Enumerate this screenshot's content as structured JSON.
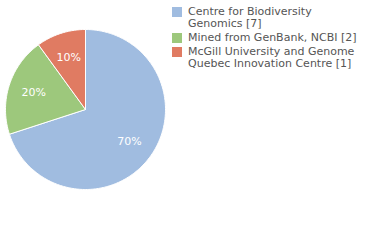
{
  "chart_data": {
    "type": "pie",
    "categories": [
      "Centre for Biodiversity Genomics [7]",
      "Mined from GenBank, NCBI [2]",
      "McGill University and Genome Quebec Innovation Centre [1]"
    ],
    "values": [
      70,
      20,
      10
    ],
    "value_labels": [
      "70%",
      "20%",
      "10%"
    ],
    "colors": [
      "#a0bce0",
      "#9dc87c",
      "#e07b62"
    ],
    "data_labels": true,
    "legend": "top-right"
  }
}
